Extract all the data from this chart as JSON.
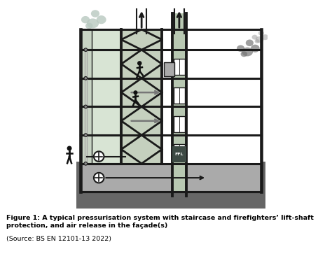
{
  "fig_width": 4.74,
  "fig_height": 3.63,
  "dpi": 100,
  "bg_color": "#ffffff",
  "wall_color": "#1a1a1a",
  "wall_lw": 2.8,
  "floor_lw": 2.2,
  "stair_fill": "#c5d0be",
  "lift_fill": "#b8c8b2",
  "left_zone_fill": "#d8e4d4",
  "ground_fill": "#666666",
  "basement_fill": "#999999",
  "smoke_color_l": "#b0c0b8",
  "smoke_color_r": "#888888",
  "arrow_color": "#777777",
  "ffl_bg": "#3d4a44",
  "ffl_text": "#ffffff",
  "person_color": "#111111",
  "door_fill": "#ffffff",
  "duct_color": "#888888",
  "fan_color": "#444444",
  "caption_bold": "Figure 1: A typical pressurisation system with staircase and firefighters’ lift-shaft\nprotection, and air release in the façade(s)",
  "caption_source": " (Source: BS EN 12101-13 2022)",
  "cap_fontsize": 6.8
}
